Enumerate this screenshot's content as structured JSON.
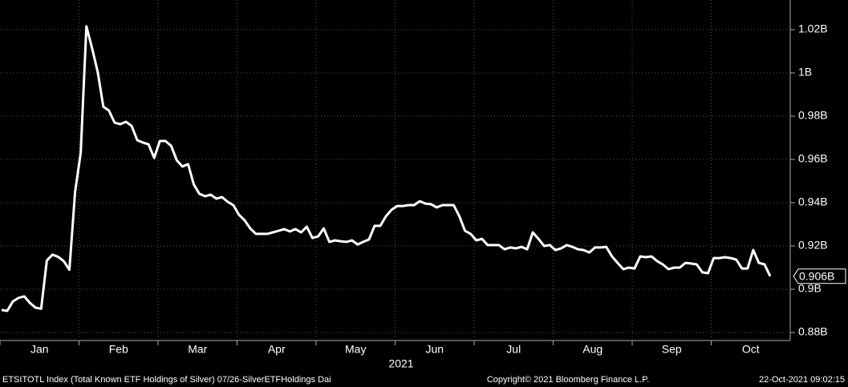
{
  "chart_data": {
    "type": "line",
    "month_labels": [
      "Jan",
      "Feb",
      "Mar",
      "Apr",
      "May",
      "Jun",
      "Jul",
      "Aug",
      "Sep",
      "Oct"
    ],
    "xlabel": "2021",
    "color": "#ffffff",
    "grid": true,
    "ylim": [
      0.8763,
      1.0337
    ],
    "yticks": [
      {
        "value": 0.88,
        "label": "0.88B"
      },
      {
        "value": 0.9,
        "label": "0.9B"
      },
      {
        "value": 0.92,
        "label": "0.92B"
      },
      {
        "value": 0.94,
        "label": "0.94B"
      },
      {
        "value": 0.96,
        "label": "0.96B"
      },
      {
        "value": 0.98,
        "label": "0.98B"
      },
      {
        "value": 1,
        "label": "1B"
      },
      {
        "value": 1.02,
        "label": "1.02B"
      }
    ],
    "values": [
      0.8904,
      0.89,
      0.8944,
      0.896,
      0.8967,
      0.8937,
      0.8915,
      0.891,
      0.9133,
      0.916,
      0.915,
      0.913,
      0.909,
      0.945,
      0.963,
      1.0215,
      1.0115,
      1.0004,
      0.9844,
      0.9826,
      0.977,
      0.9763,
      0.9774,
      0.9755,
      0.9689,
      0.9678,
      0.967,
      0.9607,
      0.9685,
      0.9685,
      0.9663,
      0.9596,
      0.9567,
      0.9578,
      0.9485,
      0.9441,
      0.943,
      0.9437,
      0.9419,
      0.9426,
      0.9404,
      0.9389,
      0.9344,
      0.9319,
      0.9281,
      0.9256,
      0.9256,
      0.9256,
      0.9263,
      0.927,
      0.9278,
      0.9267,
      0.9278,
      0.9263,
      0.9289,
      0.9237,
      0.9244,
      0.9281,
      0.9219,
      0.9226,
      0.9222,
      0.9219,
      0.9226,
      0.9207,
      0.9219,
      0.923,
      0.9293,
      0.9293,
      0.9337,
      0.9367,
      0.9385,
      0.9385,
      0.9389,
      0.9389,
      0.9407,
      0.9396,
      0.9393,
      0.9378,
      0.9389,
      0.9389,
      0.9389,
      0.9337,
      0.927,
      0.9256,
      0.9226,
      0.9233,
      0.9204,
      0.9204,
      0.9204,
      0.9185,
      0.9193,
      0.9189,
      0.9196,
      0.9185,
      0.9263,
      0.9233,
      0.92,
      0.9204,
      0.9181,
      0.9189,
      0.9204,
      0.9196,
      0.9185,
      0.9181,
      0.917,
      0.9193,
      0.9193,
      0.9196,
      0.9152,
      0.9122,
      0.9093,
      0.91,
      0.9096,
      0.9152,
      0.9148,
      0.9152,
      0.913,
      0.9115,
      0.9093,
      0.91,
      0.91,
      0.9122,
      0.9119,
      0.9115,
      0.9078,
      0.9074,
      0.9144,
      0.9144,
      0.9148,
      0.9144,
      0.9137,
      0.9096,
      0.9096,
      0.9181,
      0.9122,
      0.9115,
      0.906
    ],
    "last_label": {
      "value": 0.906,
      "label": "0.906B"
    },
    "footer": {
      "left": "ETSITOTL Index (Total Known ETF Holdings of Silver) 07/26-SilverETFHoldings  Dai",
      "center": "Copyright© 2021 Bloomberg Finance L.P.",
      "right": "22-Oct-2021 09:02:15"
    }
  }
}
